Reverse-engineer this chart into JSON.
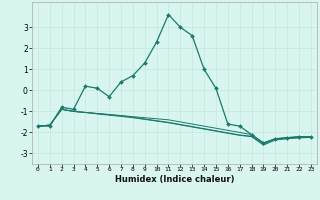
{
  "xlabel": "Humidex (Indice chaleur)",
  "x": [
    0,
    1,
    2,
    3,
    4,
    5,
    6,
    7,
    8,
    9,
    10,
    11,
    12,
    13,
    14,
    15,
    16,
    17,
    18,
    19,
    20,
    21,
    22,
    23
  ],
  "y_main": [
    -1.7,
    -1.7,
    -0.8,
    -0.9,
    0.2,
    0.1,
    -0.3,
    0.4,
    0.7,
    1.3,
    2.3,
    3.6,
    3.0,
    2.6,
    1.0,
    0.1,
    -1.6,
    -1.7,
    -2.1,
    -2.5,
    -2.3,
    -2.25,
    -2.2,
    -2.2
  ],
  "y_line2": [
    -1.7,
    -1.65,
    -0.9,
    -1.0,
    -1.05,
    -1.1,
    -1.15,
    -1.2,
    -1.25,
    -1.3,
    -1.35,
    -1.4,
    -1.5,
    -1.6,
    -1.7,
    -1.8,
    -1.9,
    -2.0,
    -2.1,
    -2.5,
    -2.3,
    -2.25,
    -2.2,
    -2.2
  ],
  "y_line3": [
    -1.7,
    -1.65,
    -0.9,
    -1.0,
    -1.05,
    -1.1,
    -1.15,
    -1.2,
    -1.28,
    -1.36,
    -1.44,
    -1.52,
    -1.62,
    -1.72,
    -1.82,
    -1.92,
    -2.02,
    -2.12,
    -2.18,
    -2.55,
    -2.32,
    -2.28,
    -2.24,
    -2.22
  ],
  "y_line4": [
    -1.7,
    -1.65,
    -0.9,
    -1.0,
    -1.05,
    -1.12,
    -1.18,
    -1.24,
    -1.3,
    -1.38,
    -1.46,
    -1.54,
    -1.64,
    -1.74,
    -1.84,
    -1.94,
    -2.04,
    -2.14,
    -2.2,
    -2.6,
    -2.36,
    -2.3,
    -2.26,
    -2.24
  ],
  "line_color": "#1a7a6a",
  "bg_color": "#d8f5f0",
  "grid_color": "#c8e8e2",
  "ylim": [
    -3.5,
    4.2
  ],
  "yticks": [
    -3,
    -2,
    -1,
    0,
    1,
    2,
    3
  ],
  "xlim": [
    -0.5,
    23.5
  ]
}
